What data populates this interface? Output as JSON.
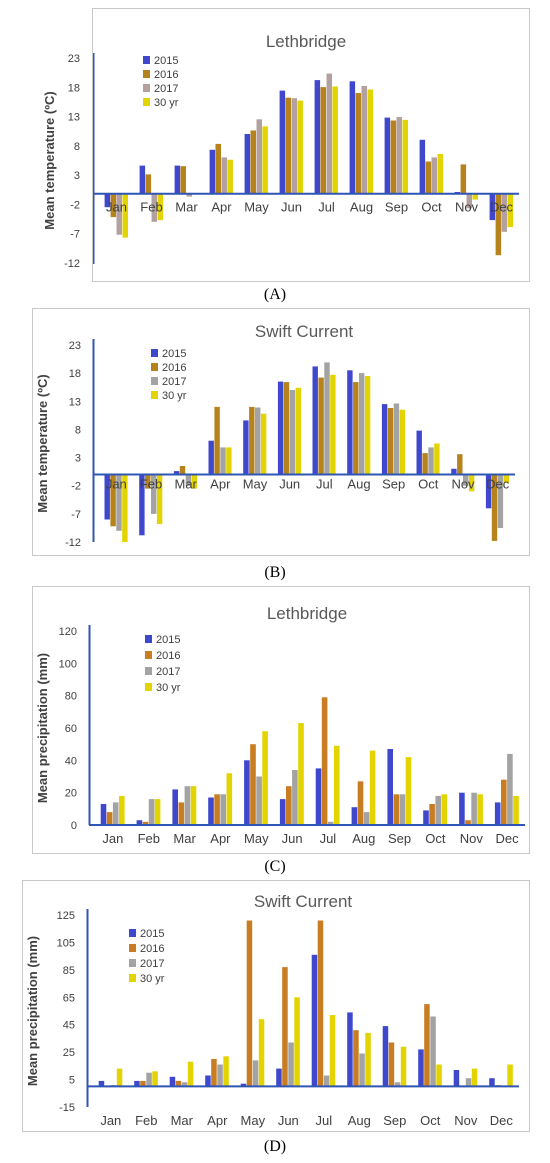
{
  "panel_labels": [
    "(A)",
    "(B)",
    "(C)",
    "(D)"
  ],
  "legend_colors": [
    "#3f48cc",
    "#8a8a1e",
    "#a3a3a3",
    "#e3d400"
  ],
  "chart_data": [
    {
      "type": "bar",
      "title": "Lethbridge",
      "ylabel": "Mean temperature (ºC)",
      "xlabel": "",
      "ylim": [
        -12,
        23
      ],
      "yticks": [
        -12,
        -7,
        -2,
        3,
        8,
        13,
        18,
        23
      ],
      "categories": [
        "Jan",
        "Feb",
        "Mar",
        "Apr",
        "May",
        "Jun",
        "Jul",
        "Aug",
        "Sep",
        "Oct",
        "Nov",
        "Dec"
      ],
      "series": [
        {
          "name": "2015",
          "color": "#3f48cc",
          "values": [
            -2.3,
            4.8,
            4.8,
            7.5,
            10.2,
            17.6,
            19.4,
            19.2,
            13.0,
            9.2,
            0.3,
            -4.5
          ]
        },
        {
          "name": "2016",
          "color": "#b5821c",
          "values": [
            -4.0,
            3.3,
            4.7,
            8.5,
            10.8,
            16.4,
            18.2,
            17.2,
            12.5,
            5.5,
            5.0,
            -10.5
          ]
        },
        {
          "name": "2017",
          "color": "#b3a0a0",
          "values": [
            -7.0,
            -4.8,
            -0.5,
            6.2,
            12.7,
            16.3,
            20.5,
            18.4,
            13.1,
            6.2,
            -2.5,
            -6.5
          ]
        },
        {
          "name": "30 yr",
          "color": "#e3d400",
          "values": [
            -7.5,
            -4.5,
            0.0,
            5.8,
            11.5,
            15.9,
            18.3,
            17.8,
            12.6,
            6.8,
            -1.0,
            -5.7
          ]
        }
      ]
    },
    {
      "type": "bar",
      "title": "Swift Current",
      "ylabel": "Mean temperature (ºC)",
      "xlabel": "",
      "ylim": [
        -12,
        23
      ],
      "yticks": [
        -12,
        -7,
        -2,
        3,
        8,
        13,
        18,
        23
      ],
      "categories": [
        "Jan",
        "Feb",
        "Mar",
        "Apr",
        "May",
        "Jun",
        "Jul",
        "Aug",
        "Sep",
        "Oct",
        "Nov",
        "Dec"
      ],
      "series": [
        {
          "name": "2015",
          "color": "#3f48cc",
          "values": [
            -8.0,
            -10.8,
            0.6,
            6.0,
            9.6,
            16.5,
            19.2,
            18.5,
            12.5,
            7.8,
            1.0,
            -6.0
          ]
        },
        {
          "name": "2016",
          "color": "#b5821c",
          "values": [
            -9.2,
            -2.5,
            1.5,
            12.0,
            12.0,
            16.4,
            17.2,
            16.4,
            11.8,
            3.8,
            3.6,
            -11.8
          ]
        },
        {
          "name": "2017",
          "color": "#a3a3a3",
          "values": [
            -10.0,
            -7.0,
            -2.0,
            4.8,
            11.9,
            15.0,
            19.9,
            18.0,
            12.6,
            4.8,
            -2.0,
            -9.5
          ]
        },
        {
          "name": "30 yr",
          "color": "#e3d400",
          "values": [
            -12.0,
            -8.8,
            -2.5,
            4.8,
            10.8,
            15.4,
            17.7,
            17.5,
            11.5,
            5.5,
            -3.0,
            -1.5
          ]
        }
      ]
    },
    {
      "type": "bar",
      "title": "Lethbridge",
      "ylabel": "Mean precipitation (mm)",
      "xlabel": "",
      "ylim": [
        0,
        120
      ],
      "yticks": [
        0,
        20,
        40,
        60,
        80,
        100,
        120
      ],
      "categories": [
        "Jan",
        "Feb",
        "Mar",
        "Apr",
        "May",
        "Jun",
        "Jul",
        "Aug",
        "Sep",
        "Oct",
        "Nov",
        "Dec"
      ],
      "series": [
        {
          "name": "2015",
          "color": "#3f48cc",
          "values": [
            13,
            3,
            22,
            17,
            40,
            16,
            35,
            11,
            47,
            9,
            20,
            14
          ]
        },
        {
          "name": "2016",
          "color": "#c97d22",
          "values": [
            8,
            2,
            14,
            19,
            50,
            24,
            79,
            27,
            19,
            13,
            3,
            28
          ]
        },
        {
          "name": "2017",
          "color": "#a3a3a3",
          "values": [
            14,
            16,
            24,
            19,
            30,
            34,
            2,
            8,
            19,
            18,
            20,
            44
          ]
        },
        {
          "name": "30 yr",
          "color": "#e3d400",
          "values": [
            18,
            16,
            24,
            32,
            58,
            63,
            49,
            46,
            42,
            19,
            19,
            18
          ]
        }
      ]
    },
    {
      "type": "bar",
      "title": "Swift Current",
      "ylabel": "Mean precipitation (mm)",
      "xlabel": "",
      "ylim": [
        -15,
        125
      ],
      "yticks": [
        -15,
        5,
        25,
        45,
        65,
        85,
        105,
        125
      ],
      "categories": [
        "Jan",
        "Feb",
        "Mar",
        "Apr",
        "May",
        "Jun",
        "Jul",
        "Aug",
        "Sep",
        "Oct",
        "Nov",
        "Dec"
      ],
      "series": [
        {
          "name": "2015",
          "color": "#3f48cc",
          "values": [
            4,
            4,
            7,
            8,
            2,
            13,
            96,
            54,
            44,
            27,
            12,
            6
          ]
        },
        {
          "name": "2016",
          "color": "#c97d22",
          "values": [
            0,
            4,
            4,
            20,
            121,
            87,
            121,
            41,
            32,
            60,
            0,
            1
          ]
        },
        {
          "name": "2017",
          "color": "#a3a3a3",
          "values": [
            1,
            10,
            3,
            16,
            19,
            32,
            8,
            24,
            3,
            51,
            6,
            0
          ]
        },
        {
          "name": "30 yr",
          "color": "#e3d400",
          "values": [
            13,
            11,
            18,
            22,
            49,
            65,
            52,
            39,
            29,
            16,
            13,
            16
          ]
        }
      ]
    }
  ]
}
